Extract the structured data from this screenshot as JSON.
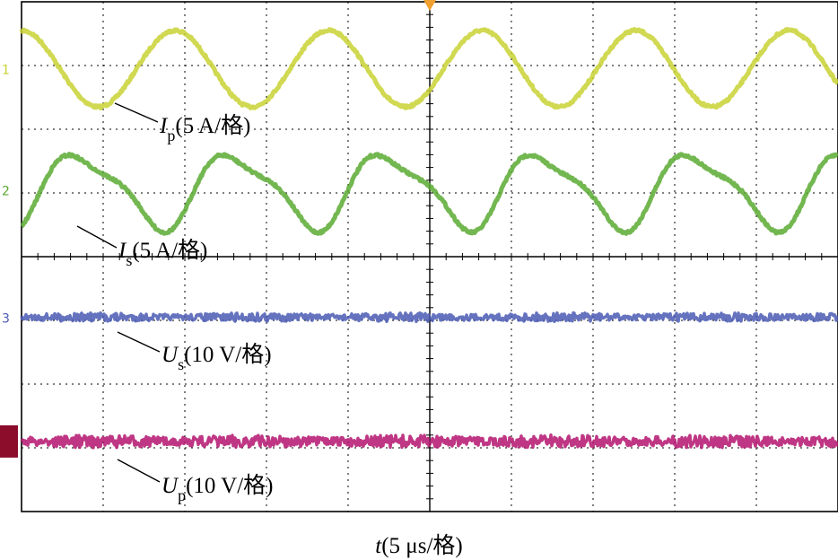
{
  "chart_data": {
    "type": "line",
    "title": "",
    "xlabel": "t(5 μs/格)",
    "xlabel_var": "t",
    "xlabel_unit": "(5 μs/格)",
    "grid": true,
    "x_divisions": 10,
    "y_divisions": 8,
    "time_per_div_us": 5,
    "period_us": 9.4,
    "series": [
      {
        "name": "Ip(5 A/格)",
        "symbol": "I",
        "subscript": "p",
        "unit_text": "(5 A/格)",
        "color": "#c8d232",
        "marker": "1",
        "shape": "sine",
        "center_div": 1.05,
        "amplitude_div": 0.6
      },
      {
        "name": "Is(5 A/格)",
        "symbol": "I",
        "subscript": "s",
        "unit_text": "(5 A/格)",
        "color": "#5aaa32",
        "marker": "2",
        "shape": "distorted-sine",
        "center_div": 2.95,
        "amplitude_div": 0.55
      },
      {
        "name": "Us(10 V/格)",
        "symbol": "U",
        "subscript": "s",
        "unit_text": "(10 V/格)",
        "color": "#4a5ab4",
        "marker": "3",
        "shape": "noisy-flat",
        "center_div": 4.95,
        "amplitude_div": 0.07
      },
      {
        "name": "Up(10 V/格)",
        "symbol": "U",
        "subscript": "p",
        "unit_text": "(10 V/格)",
        "color": "#b4146e",
        "marker": "4",
        "shape": "noisy-flat",
        "center_div": 6.9,
        "amplitude_div": 0.1
      }
    ]
  }
}
